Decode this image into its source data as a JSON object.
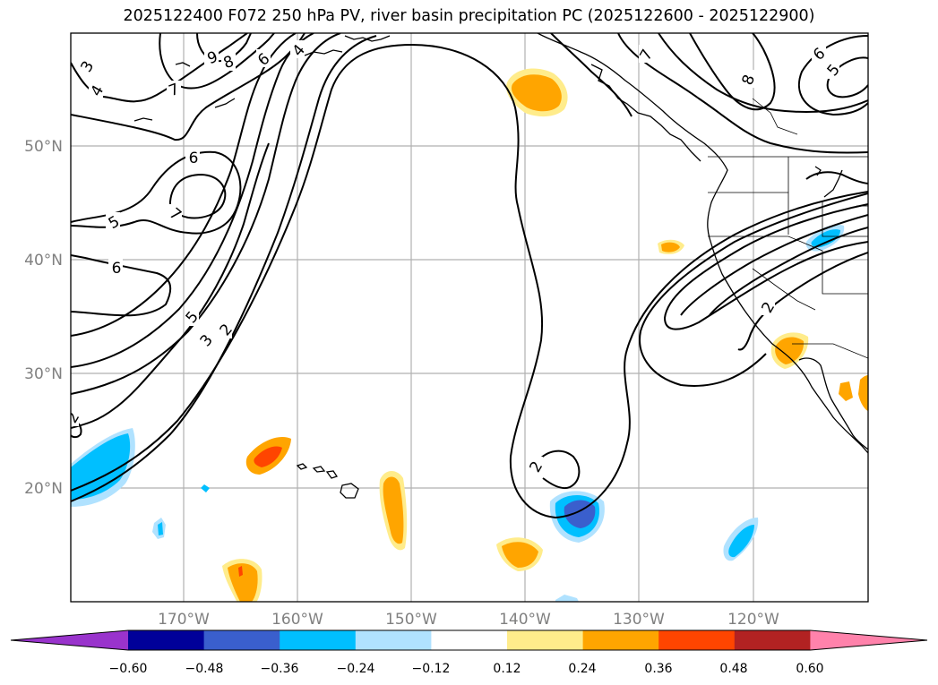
{
  "title": "2025122400 F072 250 hPa PV, river basin precipitation PC (2025122600 - 2025122900)",
  "map": {
    "lon_labels": [
      "170°W",
      "160°W",
      "150°W",
      "140°W",
      "130°W",
      "120°W"
    ],
    "lat_labels": [
      "50°N",
      "40°N",
      "30°N",
      "20°N"
    ],
    "contour_labels": [
      "3",
      "4",
      "9",
      "8",
      "6",
      "4",
      "7",
      "6",
      "5",
      "6",
      "7",
      "5",
      "3",
      "2",
      "6",
      "5",
      "8",
      "7",
      "2",
      "2",
      "2"
    ]
  },
  "colorbar": {
    "ticks": [
      "−0.60",
      "−0.48",
      "−0.36",
      "−0.24",
      "−0.12",
      "0.12",
      "0.24",
      "0.36",
      "0.48",
      "0.60"
    ],
    "colors": [
      "#9933cc",
      "#000099",
      "#3a5fcd",
      "#00bfff",
      "#b0e2ff",
      "#ffffff",
      "#ffec8b",
      "#ffa500",
      "#ff4500",
      "#b22222",
      "#ff82ab"
    ]
  }
}
